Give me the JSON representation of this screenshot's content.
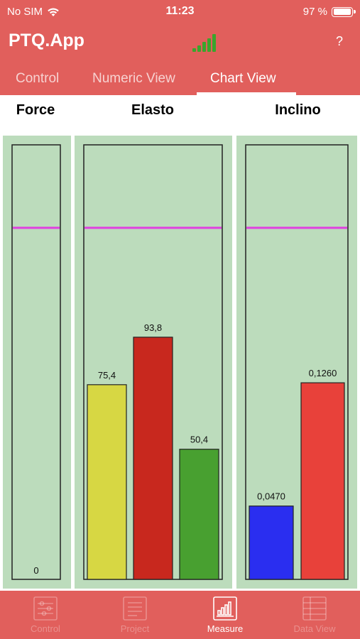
{
  "status_bar": {
    "carrier": "No SIM",
    "time": "11:23",
    "battery": "97 %",
    "battery_level": 0.97
  },
  "nav": {
    "title": "PTQ.App",
    "help_label": "?"
  },
  "tabs": [
    {
      "label": "Control"
    },
    {
      "label": "Numeric View"
    },
    {
      "label": "Chart View"
    }
  ],
  "bottom_tabs": [
    {
      "label": "Control"
    },
    {
      "label": "Project"
    },
    {
      "label": "Measure"
    },
    {
      "label": "Data View"
    }
  ],
  "colors": {
    "accent": "#e15f5c",
    "panel": "#bcdcbc",
    "limit_line": "#e040e0",
    "yellow": "#d7d743",
    "dark_red": "#c8281e",
    "green": "#48a030",
    "blue": "#2a2ef0",
    "red": "#e8413a"
  },
  "chart_data": [
    {
      "type": "bar",
      "title": "Force",
      "values": [
        0
      ],
      "value_labels": [
        "0"
      ],
      "colors": [
        "#bcdcbc"
      ]
    },
    {
      "type": "bar",
      "title": "Elasto",
      "values": [
        75.4,
        93.8,
        50.4
      ],
      "value_labels": [
        "75,4",
        "93,8",
        "50,4"
      ],
      "colors": [
        "#d7d743",
        "#c8281e",
        "#48a030"
      ],
      "limit_fraction": 0.809
    },
    {
      "type": "bar",
      "title": "Inclino",
      "values": [
        0.047,
        0.126
      ],
      "value_labels": [
        "0,0470",
        "0,1260"
      ],
      "colors": [
        "#2a2ef0",
        "#e8413a"
      ],
      "limit_fraction": 0.809
    }
  ]
}
